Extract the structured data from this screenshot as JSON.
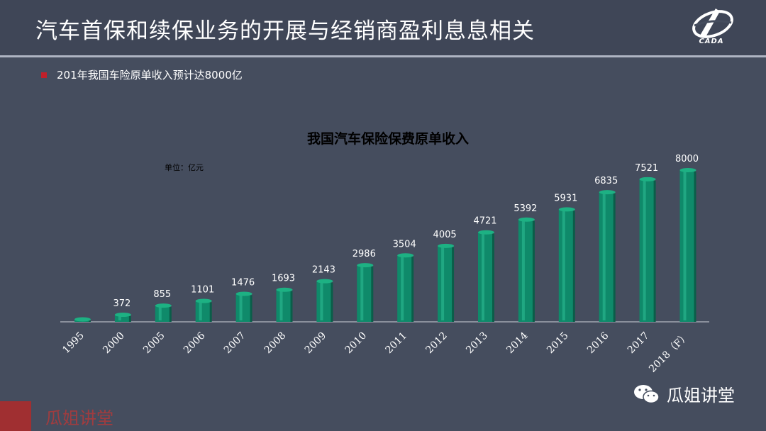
{
  "header": {
    "title": "汽车首保和续保业务的开展与经销商盈利息息相关",
    "logo_text": "CADA"
  },
  "bullet": {
    "text": "201年我国车险原单收入预计达8000亿"
  },
  "chart_data": {
    "type": "bar",
    "title": "我国汽车保险保费原单收入",
    "unit_label": "单位：亿元",
    "categories": [
      "1995",
      "2000",
      "2005",
      "2006",
      "2007",
      "2008",
      "2009",
      "2010",
      "2011",
      "2012",
      "2013",
      "2014",
      "2015",
      "2016",
      "2017",
      "2018（F）"
    ],
    "values": [
      130,
      372,
      855,
      1101,
      1476,
      1693,
      2143,
      2986,
      3504,
      4005,
      4721,
      5392,
      5931,
      6835,
      7521,
      8000
    ],
    "data_labels": [
      "",
      "372",
      "855",
      "1101",
      "1476",
      "1693",
      "2143",
      "2986",
      "3504",
      "4005",
      "4721",
      "5392",
      "5931",
      "6835",
      "7521",
      "8000"
    ],
    "ylim": [
      0,
      8000
    ],
    "grid": false,
    "legend": "none",
    "bar_color": "#0f8a6a"
  },
  "watermarks": {
    "right": "瓜姐讲堂",
    "left": "瓜姐讲堂"
  },
  "colors": {
    "background": "#454d5e",
    "accent": "#c0202a",
    "bar": "#0f8a6a"
  }
}
